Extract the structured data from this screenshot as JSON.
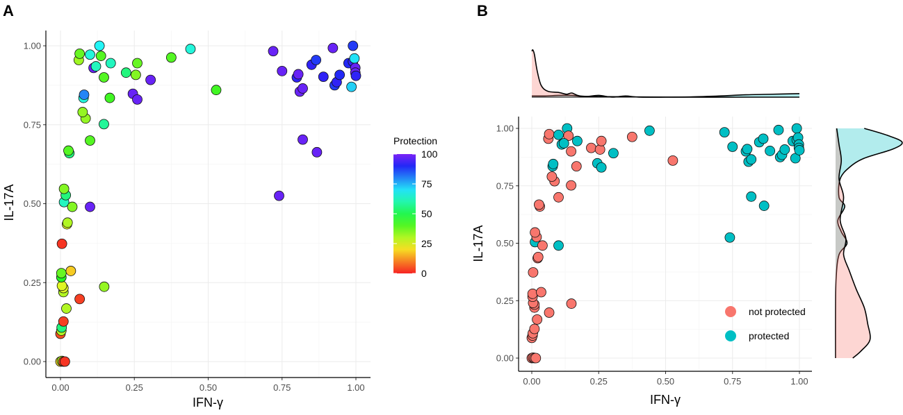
{
  "figure": {
    "panel_a_label": "A",
    "panel_b_label": "B"
  },
  "chart_data": [
    {
      "panel": "A",
      "type": "scatter",
      "xlabel": "IFN-γ",
      "ylabel": "IL-17A",
      "xlim": [
        0,
        1
      ],
      "ylim": [
        0,
        1
      ],
      "x_ticks": [
        "0.00",
        "0.25",
        "0.50",
        "0.75",
        "1.00"
      ],
      "y_ticks": [
        "0.00",
        "0.25",
        "0.50",
        "0.75",
        "1.00"
      ],
      "color_by": "Protection",
      "colorbar": {
        "title": "Protection",
        "min": 0,
        "max": 100,
        "ticks": [
          "0",
          "25",
          "50",
          "75",
          "100"
        ]
      },
      "points": [
        {
          "x": 0.0,
          "y": 0.0,
          "p": 20
        },
        {
          "x": 0.005,
          "y": 0.002,
          "p": 30
        },
        {
          "x": 0.01,
          "y": 0.0,
          "p": 5
        },
        {
          "x": 0.015,
          "y": 0.0,
          "p": 2
        },
        {
          "x": 0.0,
          "y": 0.088,
          "p": 5
        },
        {
          "x": 0.003,
          "y": 0.098,
          "p": 30
        },
        {
          "x": 0.004,
          "y": 0.108,
          "p": 55
        },
        {
          "x": 0.01,
          "y": 0.127,
          "p": 3
        },
        {
          "x": 0.02,
          "y": 0.168,
          "p": 30
        },
        {
          "x": 0.065,
          "y": 0.198,
          "p": 3
        },
        {
          "x": 0.01,
          "y": 0.22,
          "p": 30
        },
        {
          "x": 0.01,
          "y": 0.233,
          "p": 25
        },
        {
          "x": 0.005,
          "y": 0.24,
          "p": 25
        },
        {
          "x": 0.148,
          "y": 0.237,
          "p": 33
        },
        {
          "x": 0.003,
          "y": 0.267,
          "p": 45
        },
        {
          "x": 0.003,
          "y": 0.28,
          "p": 38
        },
        {
          "x": 0.035,
          "y": 0.287,
          "p": 18
        },
        {
          "x": 0.005,
          "y": 0.373,
          "p": 2
        },
        {
          "x": 0.022,
          "y": 0.435,
          "p": 25
        },
        {
          "x": 0.024,
          "y": 0.44,
          "p": 30
        },
        {
          "x": 0.012,
          "y": 0.505,
          "p": 62
        },
        {
          "x": 0.018,
          "y": 0.527,
          "p": 55
        },
        {
          "x": 0.012,
          "y": 0.547,
          "p": 35
        },
        {
          "x": 0.04,
          "y": 0.49,
          "p": 35
        },
        {
          "x": 0.1,
          "y": 0.49,
          "p": 98
        },
        {
          "x": 0.03,
          "y": 0.66,
          "p": 55
        },
        {
          "x": 0.027,
          "y": 0.668,
          "p": 40
        },
        {
          "x": 0.1,
          "y": 0.7,
          "p": 40
        },
        {
          "x": 0.085,
          "y": 0.77,
          "p": 33
        },
        {
          "x": 0.075,
          "y": 0.79,
          "p": 33
        },
        {
          "x": 0.147,
          "y": 0.752,
          "p": 58
        },
        {
          "x": 0.078,
          "y": 0.835,
          "p": 65
        },
        {
          "x": 0.08,
          "y": 0.845,
          "p": 80
        },
        {
          "x": 0.167,
          "y": 0.835,
          "p": 42
        },
        {
          "x": 0.062,
          "y": 0.955,
          "p": 32
        },
        {
          "x": 0.065,
          "y": 0.975,
          "p": 38
        },
        {
          "x": 0.1,
          "y": 0.972,
          "p": 65
        },
        {
          "x": 0.132,
          "y": 1.0,
          "p": 68
        },
        {
          "x": 0.137,
          "y": 0.968,
          "p": 40
        },
        {
          "x": 0.112,
          "y": 0.93,
          "p": 98
        },
        {
          "x": 0.12,
          "y": 0.935,
          "p": 62
        },
        {
          "x": 0.147,
          "y": 0.9,
          "p": 40
        },
        {
          "x": 0.17,
          "y": 0.945,
          "p": 62
        },
        {
          "x": 0.222,
          "y": 0.915,
          "p": 55
        },
        {
          "x": 0.255,
          "y": 0.908,
          "p": 35
        },
        {
          "x": 0.26,
          "y": 0.945,
          "p": 38
        },
        {
          "x": 0.245,
          "y": 0.848,
          "p": 98
        },
        {
          "x": 0.26,
          "y": 0.83,
          "p": 98
        },
        {
          "x": 0.305,
          "y": 0.892,
          "p": 98
        },
        {
          "x": 0.375,
          "y": 0.963,
          "p": 40
        },
        {
          "x": 0.44,
          "y": 0.99,
          "p": 65
        },
        {
          "x": 0.527,
          "y": 0.86,
          "p": 42
        },
        {
          "x": 0.72,
          "y": 0.983,
          "p": 98
        },
        {
          "x": 0.74,
          "y": 0.525,
          "p": 98
        },
        {
          "x": 0.75,
          "y": 0.92,
          "p": 98
        },
        {
          "x": 0.8,
          "y": 0.9,
          "p": 92
        },
        {
          "x": 0.805,
          "y": 0.91,
          "p": 98
        },
        {
          "x": 0.81,
          "y": 0.855,
          "p": 98
        },
        {
          "x": 0.82,
          "y": 0.865,
          "p": 98
        },
        {
          "x": 0.82,
          "y": 0.703,
          "p": 98
        },
        {
          "x": 0.868,
          "y": 0.663,
          "p": 98
        },
        {
          "x": 0.85,
          "y": 0.94,
          "p": 92
        },
        {
          "x": 0.865,
          "y": 0.955,
          "p": 88
        },
        {
          "x": 0.89,
          "y": 0.902,
          "p": 92
        },
        {
          "x": 0.922,
          "y": 0.993,
          "p": 98
        },
        {
          "x": 0.928,
          "y": 0.875,
          "p": 88
        },
        {
          "x": 0.935,
          "y": 0.885,
          "p": 92
        },
        {
          "x": 0.945,
          "y": 0.908,
          "p": 90
        },
        {
          "x": 0.975,
          "y": 0.945,
          "p": 90
        },
        {
          "x": 0.985,
          "y": 0.87,
          "p": 72
        },
        {
          "x": 0.99,
          "y": 1.0,
          "p": 88
        },
        {
          "x": 0.99,
          "y": 0.95,
          "p": 92
        },
        {
          "x": 0.995,
          "y": 0.96,
          "p": 70
        },
        {
          "x": 0.998,
          "y": 0.93,
          "p": 98
        },
        {
          "x": 0.998,
          "y": 0.915,
          "p": 98
        },
        {
          "x": 1.0,
          "y": 0.905,
          "p": 92
        }
      ]
    },
    {
      "panel": "B",
      "type": "scatter",
      "xlabel": "IFN-γ",
      "ylabel": "IL-17A",
      "xlim": [
        0,
        1
      ],
      "ylim": [
        0,
        1
      ],
      "x_ticks": [
        "0.00",
        "0.25",
        "0.50",
        "0.75",
        "1.00"
      ],
      "y_ticks": [
        "0.00",
        "0.25",
        "0.50",
        "0.75",
        "1.00"
      ],
      "threshold": 60,
      "legend": {
        "placement": "bottom-right",
        "entries": [
          {
            "label": "not protected",
            "color": "#F8766D"
          },
          {
            "label": "protected",
            "color": "#00BFC4"
          }
        ]
      },
      "marginal_densities": {
        "x": {
          "not_protected": [
            [
              0.0,
              0.78
            ],
            [
              0.004,
              0.8
            ],
            [
              0.01,
              0.72
            ],
            [
              0.02,
              0.45
            ],
            [
              0.035,
              0.2
            ],
            [
              0.06,
              0.1
            ],
            [
              0.1,
              0.08
            ],
            [
              0.13,
              0.05
            ],
            [
              0.15,
              0.07
            ],
            [
              0.18,
              0.02
            ],
            [
              0.25,
              0.01
            ],
            [
              0.4,
              0.004
            ],
            [
              0.55,
              0.0
            ],
            [
              0.8,
              0.0
            ],
            [
              1.0,
              0.0
            ]
          ],
          "protected": [
            [
              0.0,
              0.02
            ],
            [
              0.05,
              0.02
            ],
            [
              0.1,
              0.03
            ],
            [
              0.15,
              0.03
            ],
            [
              0.2,
              0.01
            ],
            [
              0.25,
              0.03
            ],
            [
              0.3,
              0.0
            ],
            [
              0.35,
              0.02
            ],
            [
              0.4,
              0.0
            ],
            [
              0.5,
              0.0
            ],
            [
              0.6,
              0.005
            ],
            [
              0.7,
              0.02
            ],
            [
              0.8,
              0.04
            ],
            [
              0.9,
              0.05
            ],
            [
              1.0,
              0.06
            ]
          ]
        },
        "y": {
          "not_protected": [
            [
              0.0,
              0.15
            ],
            [
              0.03,
              0.22
            ],
            [
              0.08,
              0.3
            ],
            [
              0.15,
              0.28
            ],
            [
              0.22,
              0.25
            ],
            [
              0.3,
              0.18
            ],
            [
              0.38,
              0.12
            ],
            [
              0.45,
              0.07
            ],
            [
              0.52,
              0.09
            ],
            [
              0.6,
              0.04
            ],
            [
              0.7,
              0.07
            ],
            [
              0.78,
              0.03
            ],
            [
              0.86,
              0.05
            ],
            [
              0.93,
              0.03
            ],
            [
              1.0,
              0.01
            ]
          ],
          "protected": [
            [
              0.0,
              0.0
            ],
            [
              0.2,
              0.0
            ],
            [
              0.35,
              0.005
            ],
            [
              0.45,
              0.03
            ],
            [
              0.5,
              0.1
            ],
            [
              0.55,
              0.05
            ],
            [
              0.6,
              0.02
            ],
            [
              0.66,
              0.08
            ],
            [
              0.7,
              0.03
            ],
            [
              0.78,
              0.04
            ],
            [
              0.83,
              0.12
            ],
            [
              0.87,
              0.25
            ],
            [
              0.91,
              0.5
            ],
            [
              0.94,
              0.58
            ],
            [
              0.97,
              0.45
            ],
            [
              1.0,
              0.25
            ]
          ]
        }
      }
    }
  ]
}
